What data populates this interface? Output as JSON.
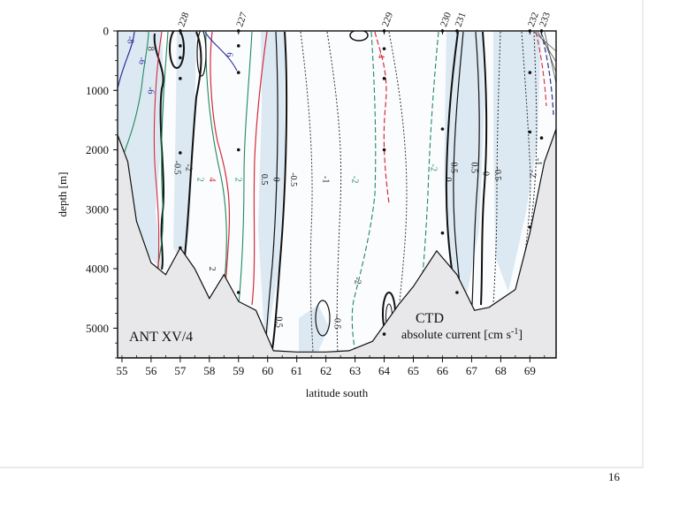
{
  "page": {
    "number": "16"
  },
  "chart_data": {
    "type": "contour",
    "title": "ANT XV/4",
    "annotation_title": "CTD",
    "annotation_subtitle": "absolute current [cm s",
    "annotation_sup": "-1",
    "annotation_close": "]",
    "xlabel": "latitude south",
    "ylabel": "depth [m]",
    "xlim": [
      54.85,
      69.9
    ],
    "ylim": [
      0,
      5500
    ],
    "y_inverted": true,
    "x_ticks": [
      55,
      56,
      57,
      58,
      59,
      60,
      61,
      62,
      63,
      64,
      65,
      66,
      67,
      68,
      69
    ],
    "y_ticks": [
      0,
      1000,
      2000,
      3000,
      4000,
      5000
    ],
    "stations": [
      {
        "label": "228",
        "lat": 57.0,
        "samples": [
          0,
          250,
          450,
          800,
          2050,
          3650
        ]
      },
      {
        "label": "227",
        "lat": 59.0,
        "samples": [
          0,
          250,
          700,
          2000,
          4400
        ]
      },
      {
        "label": "229",
        "lat": 64.0,
        "samples": [
          0,
          300,
          800,
          2000,
          5100
        ]
      },
      {
        "label": "230",
        "lat": 66.0,
        "samples": [
          0,
          1650,
          3400
        ]
      },
      {
        "label": "231",
        "lat": 66.5,
        "samples": [
          0,
          4400
        ]
      },
      {
        "label": "232",
        "lat": 69.0,
        "samples": [
          0,
          700,
          1700,
          3300
        ]
      },
      {
        "label": "233",
        "lat": 69.4,
        "samples": [
          0,
          1800
        ]
      }
    ],
    "bottom_topography": [
      [
        54.85,
        1750
      ],
      [
        55.2,
        2200
      ],
      [
        55.5,
        3200
      ],
      [
        56.0,
        3900
      ],
      [
        56.5,
        4100
      ],
      [
        57.0,
        3650
      ],
      [
        57.5,
        4000
      ],
      [
        58.0,
        4500
      ],
      [
        58.5,
        4100
      ],
      [
        59.0,
        4550
      ],
      [
        59.6,
        4700
      ],
      [
        60.2,
        5380
      ],
      [
        61.0,
        5400
      ],
      [
        62.0,
        5400
      ],
      [
        62.8,
        5380
      ],
      [
        63.6,
        5220
      ],
      [
        64.5,
        4600
      ],
      [
        65.0,
        4300
      ],
      [
        65.8,
        3700
      ],
      [
        66.5,
        4100
      ],
      [
        67.1,
        4700
      ],
      [
        67.6,
        4650
      ],
      [
        68.5,
        4350
      ],
      [
        69.0,
        3400
      ],
      [
        69.5,
        2200
      ],
      [
        69.9,
        1650
      ]
    ],
    "contour_labels": [
      {
        "text": "-0.5",
        "lat": 60.8,
        "depth": 2500,
        "color": "#222222"
      },
      {
        "text": "-1",
        "lat": 61.9,
        "depth": 2500,
        "color": "#222222"
      },
      {
        "text": "-2",
        "lat": 62.9,
        "depth": 2500,
        "color": "#1f8a5e"
      },
      {
        "text": "-2",
        "lat": 65.6,
        "depth": 2300,
        "color": "#1f8a5e"
      },
      {
        "text": "0",
        "lat": 60.2,
        "depth": 2500,
        "color": "#111111"
      },
      {
        "text": "0.5",
        "lat": 59.8,
        "depth": 2500,
        "color": "#111111"
      },
      {
        "text": "2",
        "lat": 58.9,
        "depth": 2500,
        "color": "#1f8a5e"
      },
      {
        "text": "4",
        "lat": 58.0,
        "depth": 2500,
        "color": "#d42a3c"
      },
      {
        "text": "2",
        "lat": 57.6,
        "depth": 2500,
        "color": "#1f8a5e"
      },
      {
        "text": "-2",
        "lat": 57.2,
        "depth": 2300,
        "color": "#222222"
      },
      {
        "text": "-0.5",
        "lat": 56.8,
        "depth": 2300,
        "color": "#222222"
      },
      {
        "text": "0",
        "lat": 66.1,
        "depth": 2500,
        "color": "#111111"
      },
      {
        "text": "0.5",
        "lat": 66.3,
        "depth": 2300,
        "color": "#111111"
      },
      {
        "text": "0.5",
        "lat": 67.0,
        "depth": 2300,
        "color": "#111111"
      },
      {
        "text": "0",
        "lat": 67.4,
        "depth": 2400,
        "color": "#111111"
      },
      {
        "text": "-0.5",
        "lat": 67.8,
        "depth": 2400,
        "color": "#222222"
      },
      {
        "text": "-2",
        "lat": 69.0,
        "depth": 2400,
        "color": "#222222"
      },
      {
        "text": "-1",
        "lat": 69.2,
        "depth": 2200,
        "color": "#222222"
      },
      {
        "text": "-0.5",
        "lat": 62.3,
        "depth": 4900,
        "color": "#222222"
      },
      {
        "text": "0.5",
        "lat": 60.3,
        "depth": 4900,
        "color": "#111111"
      },
      {
        "text": "-2",
        "lat": 63.0,
        "depth": 4200,
        "color": "#222222"
      },
      {
        "text": "2",
        "lat": 58.0,
        "depth": 4000,
        "color": "#222222"
      },
      {
        "text": "8",
        "lat": 55.9,
        "depth": 300,
        "color": "#333333"
      },
      {
        "text": "-8",
        "lat": 55.2,
        "depth": 150,
        "color": "#2c2c9c"
      },
      {
        "text": "-6",
        "lat": 55.6,
        "depth": 500,
        "color": "#2c2c9c"
      },
      {
        "text": "6",
        "lat": 58.6,
        "depth": 400,
        "color": "#2c2c9c"
      },
      {
        "text": "-4",
        "lat": 63.8,
        "depth": 400,
        "color": "#d42a3c"
      },
      {
        "text": "-6",
        "lat": 55.9,
        "depth": 1000,
        "color": "#2c2c9c"
      }
    ]
  },
  "colors": {
    "contour_black": "#111111",
    "contour_gray": "#555555",
    "contour_green": "#1f8a5e",
    "contour_red": "#d42a3c",
    "contour_blue": "#2c2c9c",
    "shade_blue": "#dde9f2",
    "topography": "#e8e8ea"
  }
}
